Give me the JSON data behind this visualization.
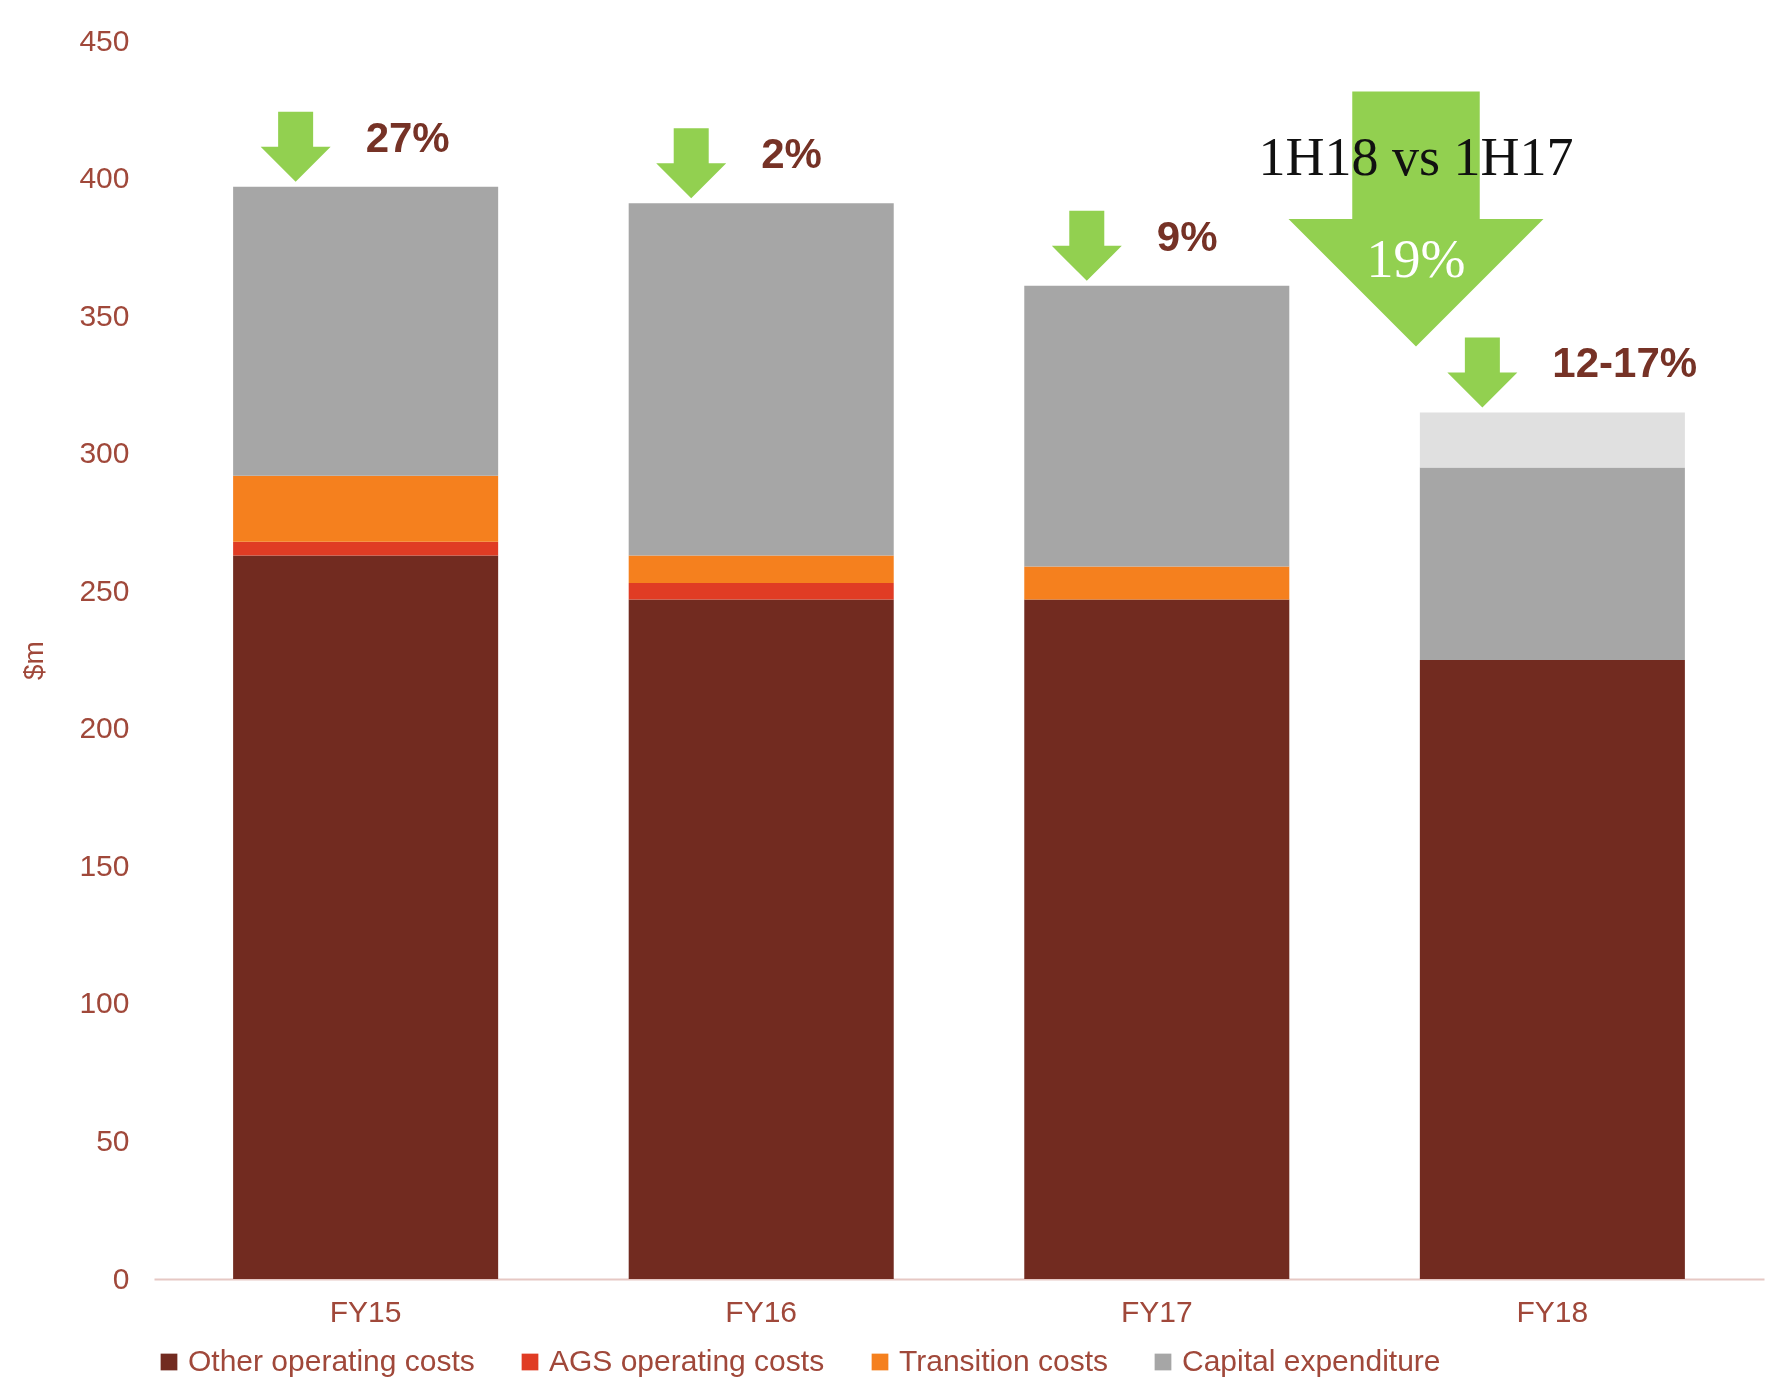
{
  "chart_data": {
    "type": "bar",
    "stacked": true,
    "ylabel": "$m",
    "categories": [
      "FY15",
      "FY16",
      "FY17",
      "FY18"
    ],
    "series": [
      {
        "name": "Other operating costs",
        "color": "#722b20",
        "values": [
          263,
          247,
          247,
          225
        ]
      },
      {
        "name": "AGS operating costs",
        "color": "#e03c24",
        "values": [
          5,
          6,
          0,
          0
        ]
      },
      {
        "name": "Transition costs",
        "color": "#f5801e",
        "values": [
          24,
          10,
          12,
          0
        ]
      },
      {
        "name": "Capital expenditure",
        "color": "#a6a6a6",
        "values": [
          105,
          128,
          102,
          70
        ]
      },
      {
        "color": "#e0e0e0",
        "values": [
          0,
          0,
          0,
          20
        ]
      }
    ],
    "ylim": [
      0,
      450
    ],
    "yticks": [
      0,
      50,
      100,
      150,
      200,
      250,
      300,
      350,
      400,
      450
    ],
    "grid": false,
    "legend": "bottom",
    "annotations": [
      "27%",
      "2%",
      "9%",
      "12-17%",
      "19%",
      "1H18 vs 1H17"
    ]
  }
}
